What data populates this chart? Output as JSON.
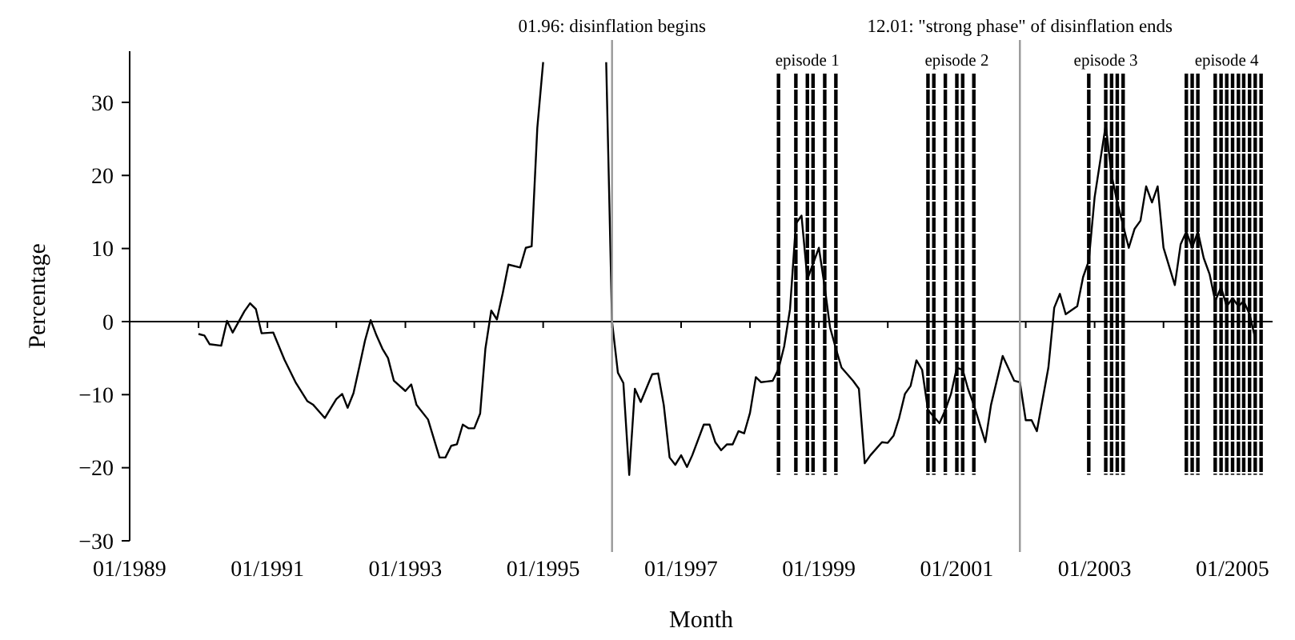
{
  "chart_data": {
    "type": "line",
    "xlabel": "Month",
    "ylabel": "Percentage",
    "x": [
      "1990-01",
      "1990-02",
      "1990-03",
      "1990-05",
      "1990-06",
      "1990-07",
      "1990-09",
      "1990-10",
      "1990-11",
      "1990-12",
      "1991-02",
      "1991-04",
      "1991-06",
      "1991-08",
      "1991-09",
      "1991-11",
      "1992-01",
      "1992-02",
      "1992-03",
      "1992-04",
      "1992-05",
      "1992-06",
      "1992-07",
      "1992-08",
      "1992-09",
      "1992-10",
      "1992-11",
      "1993-01",
      "1993-02",
      "1993-03",
      "1993-05",
      "1993-07",
      "1993-08",
      "1993-09",
      "1993-10",
      "1993-11",
      "1993-12",
      "1994-01",
      "1994-02",
      "1994-03",
      "1994-04",
      "1994-05",
      "1994-06",
      "1994-07",
      "1994-09",
      "1994-10",
      "1994-11",
      "1994-12",
      "1995-01",
      "1995-06",
      "1995-12",
      "1996-01",
      "1996-02",
      "1996-03",
      "1996-04",
      "1996-05",
      "1996-06",
      "1996-08",
      "1996-09",
      "1996-10",
      "1996-11",
      "1996-12",
      "1997-01",
      "1997-02",
      "1997-03",
      "1997-05",
      "1997-06",
      "1997-07",
      "1997-08",
      "1997-09",
      "1997-10",
      "1997-11",
      "1997-12",
      "1998-01",
      "1998-02",
      "1998-03",
      "1998-04",
      "1998-05",
      "1998-06",
      "1998-07",
      "1998-08",
      "1998-09",
      "1998-10",
      "1998-11",
      "1999-01",
      "1999-02",
      "1999-03",
      "1999-04",
      "1999-05",
      "1999-07",
      "1999-08",
      "1999-09",
      "1999-10",
      "1999-12",
      "2000-01",
      "2000-02",
      "2000-03",
      "2000-04",
      "2000-05",
      "2000-06",
      "2000-07",
      "2000-08",
      "2000-10",
      "2000-11",
      "2000-12",
      "2001-01",
      "2001-02",
      "2001-03",
      "2001-04",
      "2001-06",
      "2001-07",
      "2001-09",
      "2001-11",
      "2001-12",
      "2002-01",
      "2002-02",
      "2002-03",
      "2002-05",
      "2002-06",
      "2002-07",
      "2002-08",
      "2002-10",
      "2002-11",
      "2002-12",
      "2003-01",
      "2003-03",
      "2003-04",
      "2003-05",
      "2003-07",
      "2003-08",
      "2003-09",
      "2003-10",
      "2003-11",
      "2003-12",
      "2004-01",
      "2004-03",
      "2004-04",
      "2004-05",
      "2004-06",
      "2004-07",
      "2004-08",
      "2004-09",
      "2004-10",
      "2004-11",
      "2004-12",
      "2005-01",
      "2005-02",
      "2005-03",
      "2005-04",
      "2005-05"
    ],
    "series": [
      {
        "color": "#000000",
        "values": [
          -1.7,
          -1.9,
          -3.1,
          -3.3,
          0.1,
          -1.5,
          1.4,
          2.5,
          1.7,
          -1.6,
          -1.5,
          -5.2,
          -8.4,
          -10.9,
          -11.4,
          -13.2,
          -10.6,
          -9.9,
          -11.8,
          -9.8,
          -6.3,
          -2.6,
          0.2,
          -1.9,
          -3.7,
          -5,
          -8.1,
          -9.5,
          -8.6,
          -11.4,
          -13.4,
          -18.6,
          -18.6,
          -17,
          -16.8,
          -14.1,
          -14.6,
          -14.6,
          -12.6,
          -3.7,
          1.5,
          0.3,
          3.9,
          7.8,
          7.4,
          10.1,
          10.3,
          26.5,
          35.5,
          null,
          35.5,
          0,
          -7,
          -8.4,
          -21,
          -9.2,
          -11,
          -7.2,
          -7.1,
          -11.4,
          -18.6,
          -19.6,
          -18.3,
          -19.9,
          -18.3,
          -14.1,
          -14.1,
          -16.5,
          -17.6,
          -16.8,
          -16.8,
          -15,
          -15.3,
          -12.5,
          -7.6,
          -8.3,
          -8.2,
          -8.1,
          -6.5,
          -3.4,
          1.7,
          13.4,
          14.5,
          5.8,
          10.1,
          4.7,
          -0.8,
          -3.7,
          -6.3,
          -8.1,
          -9.2,
          -19.4,
          -18.3,
          -16.5,
          -16.6,
          -15.6,
          -13.2,
          -9.9,
          -8.8,
          -5.3,
          -6.6,
          -12.1,
          -13.9,
          -12.1,
          -9.9,
          -6.3,
          -6.6,
          -9.2,
          -11.4,
          -16.5,
          -11.4,
          -4.7,
          -8.1,
          -8.3,
          -13.5,
          -13.5,
          -15,
          -6.3,
          1.9,
          3.8,
          1,
          2.1,
          6.1,
          8.3,
          17,
          26.9,
          20,
          16.3,
          10.1,
          12.7,
          13.8,
          18.5,
          16.3,
          18.5,
          10.1,
          5,
          10.6,
          12.3,
          10.1,
          12.3,
          8.7,
          6.5,
          2.8,
          4.7,
          2.1,
          3.2,
          2.1,
          2.8,
          1,
          -2.3
        ]
      }
    ],
    "xlim": [
      "1989-01",
      "2005-08"
    ],
    "xticks": [
      {
        "value": "1989-01",
        "label": "01/1989"
      },
      {
        "value": "1990-01",
        "label": null
      },
      {
        "value": "1991-01",
        "label": "01/1991"
      },
      {
        "value": "1992-01",
        "label": null
      },
      {
        "value": "1993-01",
        "label": "01/1993"
      },
      {
        "value": "1994-01",
        "label": null
      },
      {
        "value": "1995-01",
        "label": "01/1995"
      },
      {
        "value": "1996-01",
        "label": null
      },
      {
        "value": "1997-01",
        "label": "01/1997"
      },
      {
        "value": "1998-01",
        "label": null
      },
      {
        "value": "1999-01",
        "label": "01/1999"
      },
      {
        "value": "2000-01",
        "label": null
      },
      {
        "value": "2001-01",
        "label": "01/2001"
      },
      {
        "value": "2002-01",
        "label": null
      },
      {
        "value": "2003-01",
        "label": "01/2003"
      },
      {
        "value": "2004-01",
        "label": null
      },
      {
        "value": "2005-01",
        "label": "01/2005"
      }
    ],
    "ylim": [
      -30,
      37
    ],
    "yticks": [
      {
        "value": -30,
        "label": "−30"
      },
      {
        "value": -20,
        "label": "−20"
      },
      {
        "value": -10,
        "label": "−10"
      },
      0,
      10,
      20,
      30
    ],
    "ref_lines": [
      {
        "axis": "x",
        "value": "1996-01",
        "label": "01.96: disinflation begins",
        "color": "#999999",
        "line_style": "solid"
      },
      {
        "axis": "x",
        "value": "2001-12",
        "label": "12.01: \"strong phase\" of disinflation ends",
        "color": "#999999",
        "line_style": "solid"
      },
      {
        "axis": "x",
        "value": "1998-06",
        "color": "#000000",
        "line_style": "dashed"
      },
      {
        "axis": "x",
        "value": "1998-09",
        "color": "#000000",
        "line_style": "dashed"
      },
      {
        "axis": "x",
        "value": "1998-11",
        "label": "episode 1",
        "color": "#000000",
        "line_style": "dashed"
      },
      {
        "axis": "x",
        "value": "1998-12",
        "color": "#000000",
        "line_style": "dashed"
      },
      {
        "axis": "x",
        "value": "1999-02",
        "color": "#000000",
        "line_style": "dashed"
      },
      {
        "axis": "x",
        "value": "1999-04",
        "color": "#000000",
        "line_style": "dashed"
      },
      {
        "axis": "x",
        "value": "2000-08",
        "color": "#000000",
        "line_style": "dashed"
      },
      {
        "axis": "x",
        "value": "2000-09",
        "color": "#000000",
        "line_style": "dashed"
      },
      {
        "axis": "x",
        "value": "2000-11",
        "color": "#000000",
        "line_style": "dashed"
      },
      {
        "axis": "x",
        "value": "2001-01",
        "label": "episode 2",
        "color": "#000000",
        "line_style": "dashed"
      },
      {
        "axis": "x",
        "value": "2001-02",
        "color": "#000000",
        "line_style": "dashed"
      },
      {
        "axis": "x",
        "value": "2001-04",
        "color": "#000000",
        "line_style": "dashed"
      },
      {
        "axis": "x",
        "value": "2002-12",
        "color": "#000000",
        "line_style": "dashed"
      },
      {
        "axis": "x",
        "value": "2003-03",
        "label": "episode 3",
        "color": "#000000",
        "line_style": "dashed"
      },
      {
        "axis": "x",
        "value": "2003-04",
        "color": "#000000",
        "line_style": "dashed"
      },
      {
        "axis": "x",
        "value": "2003-05",
        "color": "#000000",
        "line_style": "dashed"
      },
      {
        "axis": "x",
        "value": "2003-06",
        "color": "#000000",
        "line_style": "dashed"
      },
      {
        "axis": "x",
        "value": "2004-05",
        "color": "#000000",
        "line_style": "dashed"
      },
      {
        "axis": "x",
        "value": "2004-06",
        "color": "#000000",
        "line_style": "dashed"
      },
      {
        "axis": "x",
        "value": "2004-07",
        "color": "#000000",
        "line_style": "dashed"
      },
      {
        "axis": "x",
        "value": "2004-10",
        "color": "#000000",
        "line_style": "dashed"
      },
      {
        "axis": "x",
        "value": "2004-11",
        "color": "#000000",
        "line_style": "dashed"
      },
      {
        "axis": "x",
        "value": "2004-12",
        "label": "episode 4",
        "color": "#000000",
        "line_style": "dashed"
      },
      {
        "axis": "x",
        "value": "2005-01",
        "color": "#000000",
        "line_style": "dashed"
      },
      {
        "axis": "x",
        "value": "2005-02",
        "color": "#000000",
        "line_style": "dashed"
      },
      {
        "axis": "x",
        "value": "2005-03",
        "color": "#000000",
        "line_style": "dashed"
      },
      {
        "axis": "x",
        "value": "2005-04",
        "color": "#000000",
        "line_style": "dashed"
      },
      {
        "axis": "x",
        "value": "2005-05",
        "color": "#000000",
        "line_style": "dashed"
      },
      {
        "axis": "x",
        "value": "2005-06",
        "color": "#000000",
        "line_style": "dashed"
      }
    ]
  }
}
